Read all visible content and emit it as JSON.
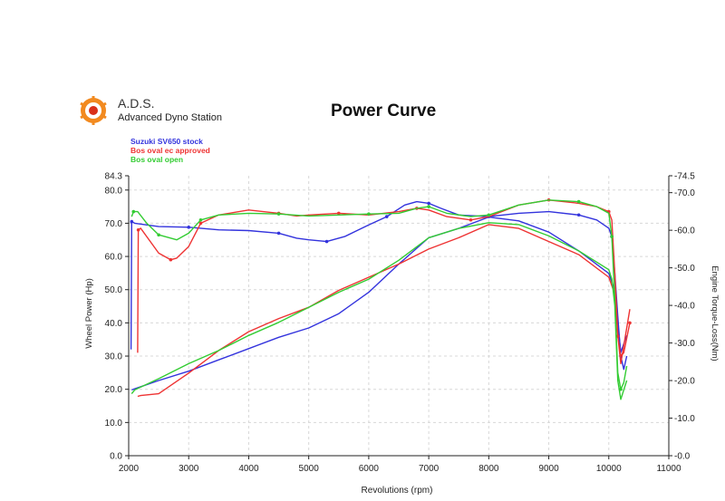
{
  "brand": {
    "name": "A.D.S.",
    "subtitle": "Advanced Dyno Station"
  },
  "chart_data": {
    "type": "line",
    "title": "Power Curve",
    "xlabel": "Revolutions (rpm)",
    "ylabel": "Wheel Power (Hp)",
    "y2label": "Engine Torque-Loss(Nm)",
    "xlim": [
      2000,
      11000
    ],
    "ylim": [
      0,
      84.3
    ],
    "y2lim": [
      0,
      -74.5
    ],
    "x_ticks": [
      "2000",
      "3000",
      "4000",
      "5000",
      "6000",
      "7000",
      "8000",
      "9000",
      "10000",
      "11000"
    ],
    "y_ticks": [
      "0.0",
      "10.0",
      "20.0",
      "30.0",
      "40.0",
      "50.0",
      "60.0",
      "70.0",
      "80.0",
      "84.3"
    ],
    "y2_ticks": [
      "-0.0",
      "-10.0",
      "-20.0",
      "-30.0",
      "-40.0",
      "-50.0",
      "-60.0",
      "-70.0",
      "-74.5"
    ],
    "grid": true,
    "legend_position": "top-left",
    "series": [
      {
        "name": "Suzuki SV650 stock",
        "color": "#3333dd",
        "power": {
          "x": [
            2040,
            2050,
            2100,
            2500,
            3000,
            3500,
            4000,
            4500,
            4800,
            5000,
            5300,
            5600,
            6000,
            6300,
            6600,
            6800,
            7000,
            7200,
            7500,
            8000,
            8500,
            9000,
            9500,
            9800,
            10000,
            10050,
            10100,
            10150,
            10200,
            10250,
            10300
          ],
          "y": [
            32,
            70.5,
            70,
            69,
            68.8,
            68,
            67.8,
            67,
            65.5,
            65,
            64.5,
            66,
            69.5,
            72,
            75.5,
            76.5,
            76,
            74.5,
            72.5,
            72,
            73,
            73.5,
            72.5,
            71,
            68.5,
            66,
            55,
            42,
            30,
            26,
            30
          ]
        },
        "torque": {
          "x": [
            2050,
            2100,
            2500,
            3000,
            3500,
            4000,
            4500,
            5000,
            5500,
            6000,
            6500,
            7000,
            7500,
            8000,
            8500,
            9000,
            9500,
            10000,
            10100,
            10150,
            10200,
            10300
          ],
          "y": [
            -17.5,
            -17.8,
            -20,
            -22.5,
            -25.5,
            -28.5,
            -31.5,
            -34,
            -37.8,
            -43.5,
            -51,
            -58,
            -60.5,
            -63.5,
            -62.5,
            -59.5,
            -54.5,
            -48.5,
            -44,
            -35,
            -27.5,
            -32
          ]
        }
      },
      {
        "name": "Bos oval ec approved",
        "color": "#ee3333",
        "power": {
          "x": [
            2150,
            2160,
            2200,
            2500,
            2700,
            2800,
            3000,
            3200,
            3500,
            4000,
            4500,
            4800,
            5000,
            5500,
            6000,
            6500,
            6800,
            7000,
            7300,
            7700,
            8000,
            8500,
            9000,
            9500,
            9800,
            10000,
            10050,
            10100,
            10150,
            10200,
            10250,
            10350
          ],
          "y": [
            31,
            68,
            68.5,
            61,
            59,
            59.5,
            63,
            70,
            72.5,
            74,
            73,
            72.2,
            72.5,
            73,
            72.5,
            73.5,
            74.5,
            74,
            72,
            71,
            72,
            75.5,
            77,
            76,
            75,
            73.5,
            71,
            55,
            36,
            30,
            31,
            40
          ]
        },
        "torque": {
          "x": [
            2150,
            2200,
            2500,
            3000,
            3500,
            4000,
            4500,
            5000,
            5500,
            6000,
            6500,
            7000,
            7500,
            8000,
            8500,
            9000,
            9500,
            10000,
            10100,
            10150,
            10200,
            10350
          ],
          "y": [
            -15.8,
            -16,
            -16.5,
            -22,
            -28,
            -33,
            -36.5,
            -39.5,
            -44,
            -47.5,
            -51,
            -55,
            -58,
            -61.5,
            -60.5,
            -57,
            -53.5,
            -47.5,
            -43,
            -32,
            -24.5,
            -39
          ]
        }
      },
      {
        "name": "Bos oval open",
        "color": "#33cc33",
        "power": {
          "x": [
            2050,
            2080,
            2150,
            2300,
            2500,
            2800,
            3000,
            3200,
            3500,
            4000,
            4500,
            5000,
            5500,
            6000,
            6500,
            6800,
            7000,
            7300,
            7700,
            8000,
            8500,
            9000,
            9500,
            9800,
            10000,
            10050,
            10100,
            10150,
            10200,
            10250,
            10300
          ],
          "y": [
            72,
            73.5,
            73.5,
            70,
            66.5,
            65,
            67,
            71,
            72.5,
            73,
            72.8,
            72.2,
            72.5,
            72.8,
            73,
            74.5,
            75,
            73,
            72,
            72.5,
            75.5,
            77,
            76.5,
            75,
            73,
            66,
            47,
            25,
            20,
            22,
            27
          ]
        },
        "torque": {
          "x": [
            2050,
            2100,
            2500,
            3000,
            3500,
            4000,
            4500,
            5000,
            5500,
            6000,
            6500,
            7000,
            7500,
            8000,
            8500,
            9000,
            9500,
            10000,
            10050,
            10100,
            10150,
            10200,
            10300
          ],
          "y": [
            -16.5,
            -17.5,
            -20.5,
            -24.5,
            -28,
            -32,
            -35.5,
            -39.5,
            -43.5,
            -47,
            -52,
            -58,
            -60.5,
            -62,
            -61.5,
            -58.5,
            -54.5,
            -49.5,
            -47,
            -40,
            -20,
            -15,
            -20
          ]
        }
      }
    ]
  }
}
